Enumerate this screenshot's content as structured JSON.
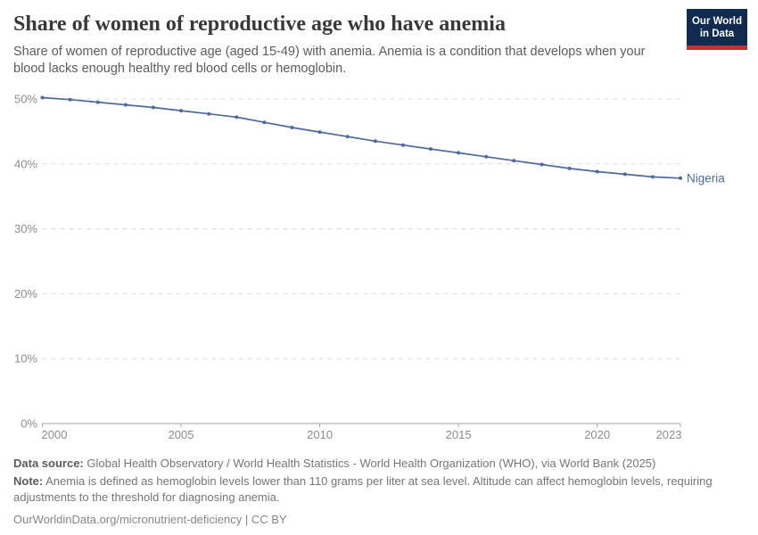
{
  "header": {
    "title": "Share of women of reproductive age who have anemia",
    "subtitle": "Share of women of reproductive age (aged 15-49) with anemia. Anemia is a condition that develops when your blood lacks enough healthy red blood cells or hemoglobin."
  },
  "logo": {
    "line1": "Our World",
    "line2": "in Data",
    "bg_color": "#102a50",
    "accent_color": "#c2332b"
  },
  "chart_data": {
    "type": "line",
    "title": "Share of women of reproductive age who have anemia",
    "xlabel": "",
    "ylabel": "",
    "xlim": [
      2000,
      2023
    ],
    "ylim": [
      0,
      50
    ],
    "grid": "horizontal-dashed",
    "x_ticks": [
      2000,
      2005,
      2010,
      2015,
      2020,
      2023
    ],
    "x_tick_labels": [
      "2000",
      "2005",
      "2010",
      "2015",
      "2020",
      "2023"
    ],
    "y_ticks": [
      0,
      10,
      20,
      30,
      40,
      50
    ],
    "y_tick_labels": [
      "0%",
      "10%",
      "20%",
      "30%",
      "40%",
      "50%"
    ],
    "series": [
      {
        "name": "Nigeria",
        "color": "#4C6A9C",
        "x": [
          2000,
          2001,
          2002,
          2003,
          2004,
          2005,
          2006,
          2007,
          2008,
          2009,
          2010,
          2011,
          2012,
          2013,
          2014,
          2015,
          2016,
          2017,
          2018,
          2019,
          2020,
          2021,
          2022,
          2023
        ],
        "values": [
          50.2,
          49.9,
          49.5,
          49.1,
          48.7,
          48.2,
          47.7,
          47.2,
          46.4,
          45.6,
          44.9,
          44.2,
          43.5,
          42.9,
          42.3,
          41.7,
          41.1,
          40.5,
          39.9,
          39.3,
          38.8,
          38.4,
          38.0,
          37.8
        ]
      }
    ],
    "end_label": "Nigeria",
    "legend_position": "end-of-line",
    "grid_color": "#dadada",
    "axis_color": "#a3a3a3",
    "tick_text_color": "#8c8c8c"
  },
  "footer": {
    "datasource_label": "Data source:",
    "datasource_text": "Global Health Observatory / World Health Statistics - World Health Organization (WHO), via World Bank (2025)",
    "note_label": "Note:",
    "note_text": "Anemia is defined as hemoglobin levels lower than 110 grams per liter at sea level. Altitude can affect hemoglobin levels, requiring adjustments to the threshold for diagnosing anemia.",
    "citation": "OurWorldinData.org/micronutrient-deficiency | CC BY"
  }
}
